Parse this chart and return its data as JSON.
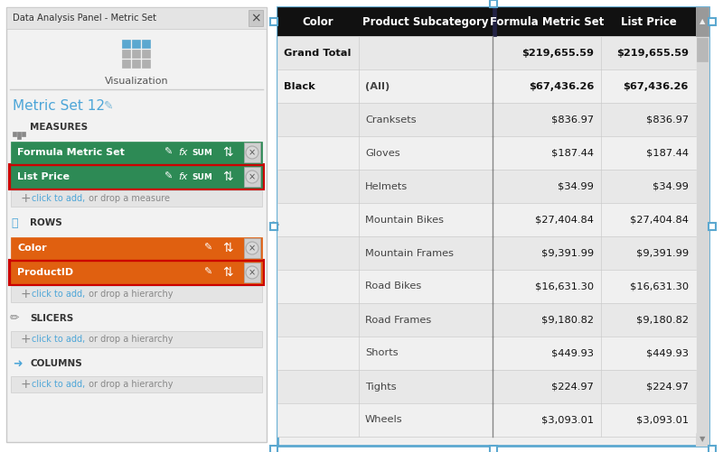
{
  "fig_width": 8.0,
  "fig_height": 5.01,
  "bg_color": "#ffffff",
  "left_panel": {
    "title": "Data Analysis Panel - Metric Set",
    "bg_color": "#f2f2f2",
    "border_color": "#cccccc",
    "measures_items": [
      {
        "text": "Formula Metric Set",
        "color": "#2d8a55",
        "highlighted": false
      },
      {
        "text": "List Price",
        "color": "#2d8a55",
        "highlighted": true
      }
    ],
    "rows_items": [
      {
        "text": "Color",
        "color": "#e06010",
        "highlighted": false
      },
      {
        "text": "ProductID",
        "color": "#e06010",
        "highlighted": true
      }
    ]
  },
  "right_panel": {
    "header_bg": "#111111",
    "header_text_color": "#ffffff",
    "col1_header": "Color",
    "col2_header": "Product Subcategory",
    "col3_header": "Formula Metric Set",
    "col4_header": "List Price",
    "rows": [
      {
        "color_label": "Grand Total",
        "sub_label": "",
        "formula": "$219,655.59",
        "list": "$219,655.59",
        "bold": true,
        "bg": "#e8e8e8"
      },
      {
        "color_label": "Black",
        "sub_label": "(All)",
        "formula": "$67,436.26",
        "list": "$67,436.26",
        "bold": true,
        "bg": "#f0f0f0"
      },
      {
        "color_label": "",
        "sub_label": "Cranksets",
        "formula": "$836.97",
        "list": "$836.97",
        "bold": false,
        "bg": "#e8e8e8"
      },
      {
        "color_label": "",
        "sub_label": "Gloves",
        "formula": "$187.44",
        "list": "$187.44",
        "bold": false,
        "bg": "#f0f0f0"
      },
      {
        "color_label": "",
        "sub_label": "Helmets",
        "formula": "$34.99",
        "list": "$34.99",
        "bold": false,
        "bg": "#e8e8e8"
      },
      {
        "color_label": "",
        "sub_label": "Mountain Bikes",
        "formula": "$27,404.84",
        "list": "$27,404.84",
        "bold": false,
        "bg": "#f0f0f0"
      },
      {
        "color_label": "",
        "sub_label": "Mountain Frames",
        "formula": "$9,391.99",
        "list": "$9,391.99",
        "bold": false,
        "bg": "#e8e8e8"
      },
      {
        "color_label": "",
        "sub_label": "Road Bikes",
        "formula": "$16,631.30",
        "list": "$16,631.30",
        "bold": false,
        "bg": "#f0f0f0"
      },
      {
        "color_label": "",
        "sub_label": "Road Frames",
        "formula": "$9,180.82",
        "list": "$9,180.82",
        "bold": false,
        "bg": "#e8e8e8"
      },
      {
        "color_label": "",
        "sub_label": "Shorts",
        "formula": "$449.93",
        "list": "$449.93",
        "bold": false,
        "bg": "#f0f0f0"
      },
      {
        "color_label": "",
        "sub_label": "Tights",
        "formula": "$224.97",
        "list": "$224.97",
        "bold": false,
        "bg": "#e8e8e8"
      },
      {
        "color_label": "",
        "sub_label": "Wheels",
        "formula": "$3,093.01",
        "list": "$3,093.01",
        "bold": false,
        "bg": "#f0f0f0"
      }
    ]
  },
  "accent_color": "#5ba8d0",
  "green_color": "#2d8a55",
  "orange_color": "#e06010",
  "red_highlight": "#cc0000"
}
